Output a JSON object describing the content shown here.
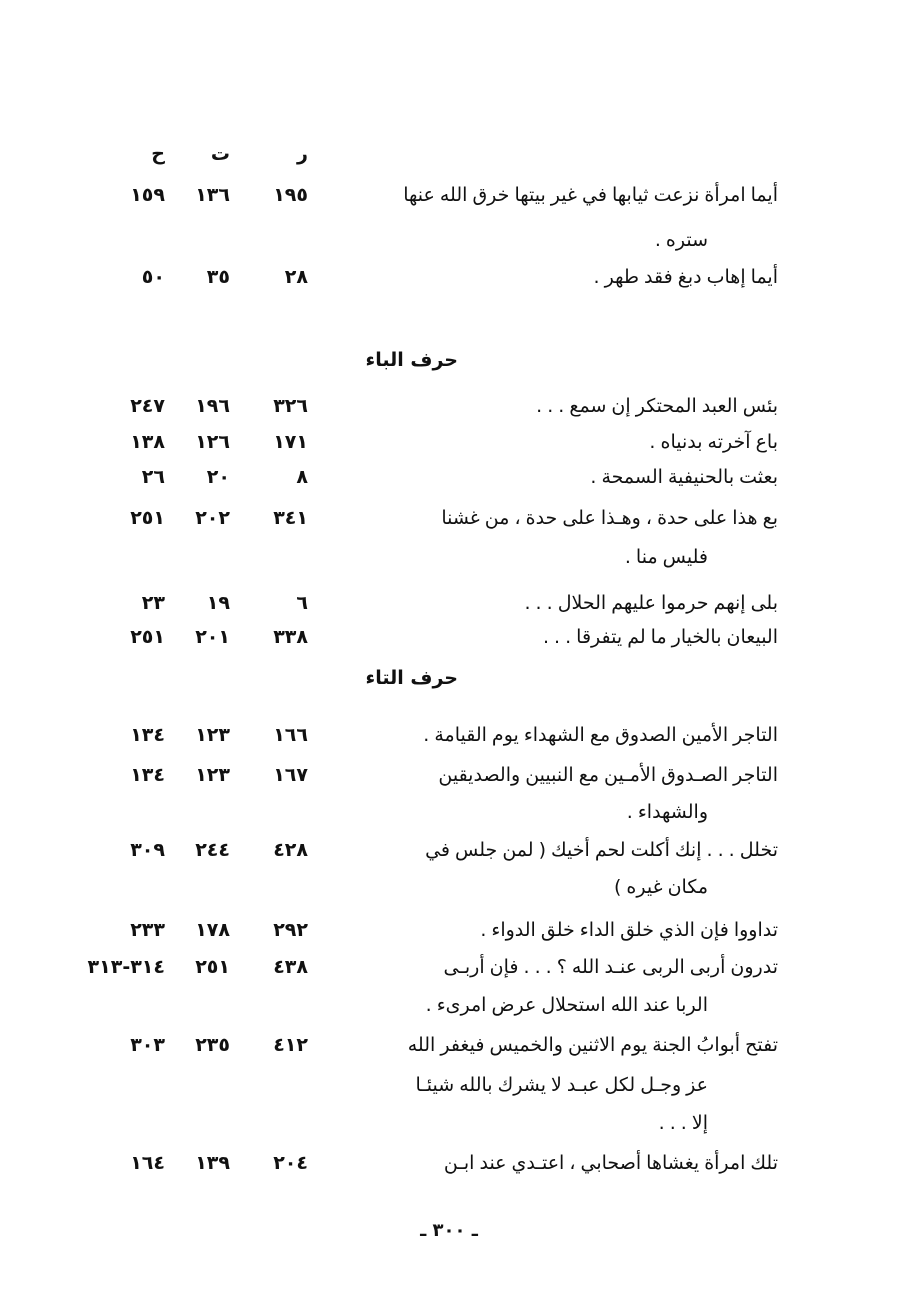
{
  "columns": {
    "r": "ر",
    "t": "ت",
    "h": "ح"
  },
  "entries": [
    {
      "lines": [
        "أيما امرأة نزعت ثيابها في غير بيتها خرق الله عنها",
        "ستره ."
      ],
      "r": "١٩٥",
      "t": "١٣٦",
      "h": "١٥٩"
    },
    {
      "lines": [
        "أيما إهاب دبغ فقد طهر ."
      ],
      "r": "٢٨",
      "t": "٣٥",
      "h": "٥٠"
    },
    {
      "lines": [
        "بئس العبد المحتكر إن سمع . . ."
      ],
      "r": "٣٢٦",
      "t": "١٩٦",
      "h": "٢٤٧"
    },
    {
      "lines": [
        "باع آخرته بدنياه ."
      ],
      "r": "١٧١",
      "t": "١٢٦",
      "h": "١٣٨"
    },
    {
      "lines": [
        "بعثت بالحنيفية السمحة ."
      ],
      "r": "٨",
      "t": "٢٠",
      "h": "٢٦"
    },
    {
      "lines": [
        "بع هذا على حدة ، وهـذا على حدة ، من  غشنا",
        "فليس منا ."
      ],
      "r": "٣٤١",
      "t": "٢٠٢",
      "h": "٢٥١"
    },
    {
      "lines": [
        "بلى إنهم حرموا عليهم الحلال . . ."
      ],
      "r": "٦",
      "t": "١٩",
      "h": "٢٣"
    },
    {
      "lines": [
        "البيعان بالخيار ما لم يتفرقا . . ."
      ],
      "r": "٣٣٨",
      "t": "٢٠١",
      "h": "٢٥١"
    },
    {
      "lines": [
        "التاجر الأمين الصدوق مع الشهداء يوم القيامة ."
      ],
      "r": "١٦٦",
      "t": "١٢٣",
      "h": "١٣٤"
    },
    {
      "lines": [
        "التاجر الصـدوق الأمـين   مع النبيين والصديقين",
        "والشهداء ."
      ],
      "r": "١٦٧",
      "t": "١٢٣",
      "h": "١٣٤"
    },
    {
      "lines": [
        "تخلل . . . إنك أكلت لحم أخيك ( لمن جلس في",
        "مكان غيره )"
      ],
      "r": "٤٢٨",
      "t": "٢٤٤",
      "h": "٣٠٩"
    },
    {
      "lines": [
        "تداووا فإن الذي خلق الداء خلق الدواء ."
      ],
      "r": "٢٩٢",
      "t": "١٧٨",
      "h": "٢٣٣"
    },
    {
      "lines": [
        "تدرون أربى الربى عنـد الله ؟ . . . فإن أربـى",
        "الربا عند الله استحلال عرض امرىء ."
      ],
      "r": "٤٣٨",
      "t": "٢٥١",
      "h": "٣١٤-٣١٣"
    },
    {
      "lines": [
        "تفتح أبوابُ الجنة يوم الاثنين والخميس فيغفر الله",
        "عز وجـل لكل عبـد لا يشرك بالله شيئـا",
        "إلا . . ."
      ],
      "r": "٤١٢",
      "t": "٢٣٥",
      "h": "٣٠٣"
    },
    {
      "lines": [
        "تلك امرأة يغشاها أصحابي ، اعتـدي عند ابـن"
      ],
      "r": "٢٠٤",
      "t": "١٣٩",
      "h": "١٦٤"
    }
  ],
  "headings": {
    "ba": "حرف الباء",
    "ta": "حرف التاء"
  },
  "page_number": "ـ ٣٠٠ ـ"
}
